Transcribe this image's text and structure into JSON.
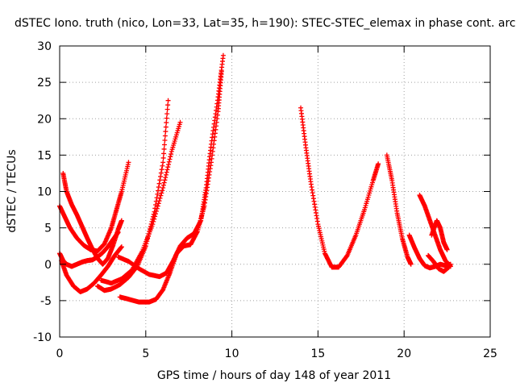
{
  "chart_data": {
    "type": "scatter",
    "title": "dSTEC Iono. truth (nico, Lon=33, Lat=35, h=190): STEC-STEC_elemax in phase cont. arc",
    "xlabel": "GPS time / hours of day 148 of year 2011",
    "ylabel": "dSTEC  / TECUs",
    "xlim": [
      0,
      25
    ],
    "ylim": [
      -10,
      30
    ],
    "xticks": [
      0,
      5,
      10,
      15,
      20,
      25
    ],
    "yticks": [
      -10,
      -5,
      0,
      5,
      10,
      15,
      20,
      25,
      30
    ],
    "grid": true,
    "marker": "plus",
    "color": "#ff0000",
    "series": [
      {
        "x": [
          0.0,
          0.3,
          0.6,
          1.0,
          1.4,
          1.8,
          2.2,
          2.6,
          3.0,
          3.3,
          3.6,
          4.0
        ],
        "y": [
          8.0,
          6.5,
          5.0,
          3.6,
          2.6,
          2.0,
          1.8,
          2.8,
          5.0,
          7.5,
          10.0,
          14.0
        ]
      },
      {
        "x": [
          0.2,
          0.4,
          0.7,
          1.0,
          1.3,
          1.6,
          1.9,
          2.2,
          2.5,
          2.8,
          3.1,
          3.4,
          3.6
        ],
        "y": [
          12.5,
          10.0,
          8.2,
          6.8,
          5.2,
          3.6,
          2.1,
          0.8,
          0.0,
          0.8,
          2.6,
          4.8,
          6.0
        ]
      },
      {
        "x": [
          0.0,
          0.2,
          0.4,
          0.7,
          1.0,
          1.3,
          1.6,
          1.9,
          2.2,
          2.5,
          2.8,
          3.1,
          3.4
        ],
        "y": [
          1.5,
          0.5,
          0.0,
          -0.3,
          0.0,
          0.3,
          0.5,
          0.6,
          1.0,
          1.6,
          2.4,
          3.4,
          4.4
        ]
      },
      {
        "x": [
          0.1,
          0.4,
          0.8,
          1.2,
          1.6,
          2.0,
          2.4,
          2.8,
          3.2,
          3.6
        ],
        "y": [
          0.5,
          -1.5,
          -3.0,
          -3.8,
          -3.4,
          -2.6,
          -1.5,
          -0.3,
          1.2,
          2.4
        ]
      },
      {
        "x": [
          2.2,
          2.6,
          3.0,
          3.5,
          4.0,
          4.5,
          5.0,
          5.5,
          6.0,
          6.3
        ],
        "y": [
          -3.0,
          -3.6,
          -3.4,
          -2.8,
          -1.8,
          -0.3,
          2.5,
          7.2,
          14.0,
          22.5
        ]
      },
      {
        "x": [
          2.4,
          3.0,
          3.6,
          4.2,
          4.8,
          5.4,
          6.0,
          6.5,
          7.0
        ],
        "y": [
          -2.2,
          -2.6,
          -2.0,
          -0.8,
          1.8,
          5.5,
          10.5,
          15.5,
          19.5
        ]
      },
      {
        "x": [
          3.4,
          4.0,
          4.6,
          5.2,
          5.8,
          6.2,
          6.6,
          7.0,
          7.4,
          7.8,
          8.2,
          8.5,
          8.8,
          9.2,
          9.5
        ],
        "y": [
          1.0,
          0.4,
          -0.6,
          -1.4,
          -1.7,
          -1.2,
          0.5,
          2.5,
          3.6,
          4.2,
          6.0,
          10.5,
          16.5,
          23.0,
          28.7
        ]
      },
      {
        "x": [
          3.5,
          4.0,
          4.6,
          5.2,
          5.6,
          6.0,
          6.4,
          6.8,
          7.2,
          7.6,
          8.0,
          8.4,
          8.8,
          9.2,
          9.4
        ],
        "y": [
          -4.5,
          -4.8,
          -5.2,
          -5.2,
          -4.8,
          -3.5,
          -1.2,
          1.5,
          2.5,
          2.7,
          4.5,
          8.0,
          14.0,
          21.0,
          26.5
        ]
      },
      {
        "x": [
          14.0,
          14.3,
          14.6,
          15.0,
          15.4,
          15.8,
          16.2,
          16.7,
          17.2,
          17.7,
          18.2,
          18.5
        ],
        "y": [
          21.5,
          16.0,
          11.0,
          5.5,
          1.5,
          -0.4,
          -0.4,
          1.2,
          4.0,
          7.5,
          11.5,
          13.8
        ]
      },
      {
        "x": [
          19.0,
          19.3,
          19.6,
          19.9,
          20.2,
          20.4
        ],
        "y": [
          15.0,
          11.5,
          7.0,
          3.5,
          1.0,
          0.0
        ]
      },
      {
        "x": [
          20.3,
          20.6,
          20.9,
          21.2,
          21.5,
          21.8,
          22.1,
          22.4,
          22.7
        ],
        "y": [
          4.0,
          2.3,
          0.8,
          -0.2,
          -0.5,
          -0.3,
          0.0,
          -0.2,
          0.0
        ]
      },
      {
        "x": [
          20.9,
          21.2,
          21.5,
          21.8,
          22.1,
          22.4,
          22.7
        ],
        "y": [
          9.5,
          8.0,
          6.0,
          4.0,
          2.0,
          0.5,
          -0.3
        ]
      },
      {
        "x": [
          21.4,
          21.7,
          22.0,
          22.3,
          22.6
        ],
        "y": [
          1.2,
          0.4,
          -0.6,
          -1.0,
          -0.4
        ]
      },
      {
        "x": [
          21.6,
          21.9,
          22.1,
          22.3,
          22.5
        ],
        "y": [
          4.0,
          6.0,
          5.0,
          3.0,
          2.0
        ]
      }
    ]
  }
}
